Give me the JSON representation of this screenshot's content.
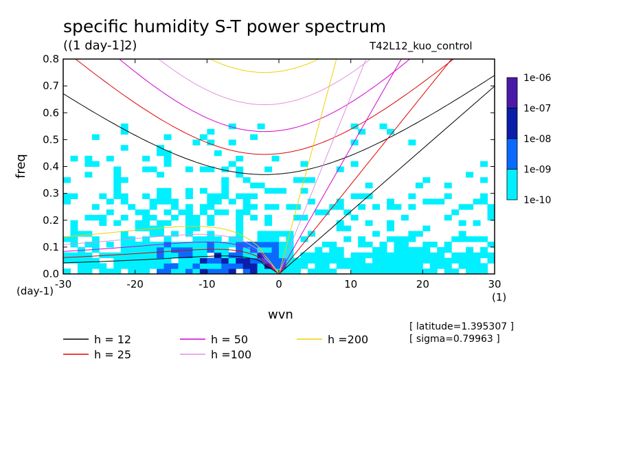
{
  "title": "specific humidity S-T power spectrum",
  "units": "((1 day-1]2)",
  "run_label": "T42L12_kuo_control",
  "info": {
    "latitude": "[ latitude=1.395307 ]",
    "sigma": "[ sigma=0.79963 ]"
  },
  "chart_data": {
    "type": "line",
    "xlabel": "wvn",
    "ylabel": "freq",
    "x_unit": "(1)",
    "y_unit": "(day-1)",
    "xlim": [
      -30,
      30
    ],
    "ylim": [
      0,
      0.8
    ],
    "x_ticks": [
      -30,
      -20,
      -10,
      0,
      10,
      20,
      30
    ],
    "y_ticks": [
      0.0,
      0.1,
      0.2,
      0.3,
      0.4,
      0.5,
      0.6,
      0.7,
      0.8
    ],
    "series": [
      {
        "name": "h = 12",
        "color": "#000000",
        "min_freq": 0.37
      },
      {
        "name": "h = 25",
        "color": "#e00000",
        "min_freq": 0.445
      },
      {
        "name": "h = 50",
        "color": "#d000d0",
        "min_freq": 0.53
      },
      {
        "name": "h =100",
        "color": "#e090e0",
        "min_freq": 0.63
      },
      {
        "name": "h =200",
        "color": "#f0d000",
        "min_freq": 0.75
      }
    ],
    "colorbar": {
      "levels": [
        "1e-06",
        "1e-07",
        "1e-08",
        "1e-09",
        "1e-10"
      ],
      "colors": [
        "#4a1aa8",
        "#0a1eaa",
        "#0a6aff",
        "#00f0ff"
      ]
    }
  }
}
